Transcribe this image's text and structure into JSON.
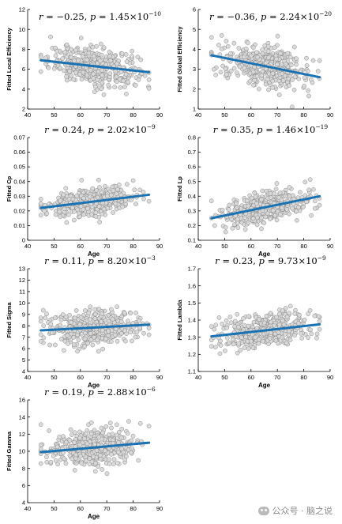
{
  "watermark": "公众号 · 脑之说",
  "colors": {
    "line": "#1a72b3",
    "point_fill": "#d9d9d9",
    "point_stroke": "#7d7d7d",
    "axis": "#000000"
  },
  "chart_data": [
    {
      "type": "scatter",
      "annotation_r": "−0.25",
      "annotation_p_mant": "1.45",
      "annotation_p_exp": "−10",
      "ylabel": "Fitted Local Efficiency",
      "xlabel": "",
      "xlim": [
        40,
        90
      ],
      "ylim": [
        2,
        12
      ],
      "xticks": [
        40,
        50,
        60,
        70,
        80,
        90
      ],
      "yticks": [
        2,
        4,
        6,
        8,
        10,
        12
      ],
      "ytick_labels": [
        "2",
        "4",
        "6",
        "8",
        "10",
        "12"
      ],
      "fit": {
        "x": [
          45,
          86
        ],
        "y": [
          6.9,
          5.7
        ]
      },
      "center": 6.3,
      "spread": 0.9
    },
    {
      "type": "scatter",
      "annotation_r": "−0.36",
      "annotation_p_mant": "2.24",
      "annotation_p_exp": "−20",
      "ylabel": "Fitted Global Efficiency",
      "xlabel": "",
      "xlim": [
        40,
        90
      ],
      "ylim": [
        1,
        6
      ],
      "xticks": [
        40,
        50,
        60,
        70,
        80,
        90
      ],
      "yticks": [
        1,
        2,
        3,
        4,
        5,
        6
      ],
      "ytick_labels": [
        "1",
        "2",
        "3",
        "4",
        "5",
        "6"
      ],
      "fit": {
        "x": [
          45,
          86
        ],
        "y": [
          3.7,
          2.6
        ]
      },
      "center": 3.2,
      "spread": 0.5
    },
    {
      "type": "scatter",
      "annotation_r": "0.24",
      "annotation_p_mant": "2.02",
      "annotation_p_exp": "−9",
      "ylabel": "Fitted Cp",
      "xlabel": "Age",
      "xlim": [
        40,
        90
      ],
      "ylim": [
        0,
        0.07
      ],
      "xticks": [
        40,
        50,
        60,
        70,
        80,
        90
      ],
      "yticks": [
        0,
        0.01,
        0.02,
        0.03,
        0.04,
        0.05,
        0.06,
        0.07
      ],
      "ytick_labels": [
        "0",
        "0.01",
        "0.02",
        "0.03",
        "0.04",
        "0.05",
        "0.06",
        "0.07"
      ],
      "fit": {
        "x": [
          45,
          86
        ],
        "y": [
          0.022,
          0.031
        ]
      },
      "center": 0.027,
      "spread": 0.0045
    },
    {
      "type": "scatter",
      "annotation_r": "0.35",
      "annotation_p_mant": "1.46",
      "annotation_p_exp": "−19",
      "ylabel": "Fitted Lp",
      "xlabel": "Age",
      "xlim": [
        40,
        90
      ],
      "ylim": [
        0.1,
        0.8
      ],
      "xticks": [
        40,
        50,
        60,
        70,
        80,
        90
      ],
      "yticks": [
        0.1,
        0.2,
        0.3,
        0.4,
        0.5,
        0.6,
        0.7,
        0.8
      ],
      "ytick_labels": [
        "0.1",
        "0.2",
        "0.3",
        "0.4",
        "0.5",
        "0.6",
        "0.7",
        "0.8"
      ],
      "fit": {
        "x": [
          45,
          86
        ],
        "y": [
          0.25,
          0.4
        ]
      },
      "center": 0.32,
      "spread": 0.055
    },
    {
      "type": "scatter",
      "annotation_r": "0.11",
      "annotation_p_mant": "8.20",
      "annotation_p_exp": "−3",
      "ylabel": "Fitted Sigma",
      "xlabel": "Age",
      "xlim": [
        40,
        90
      ],
      "ylim": [
        4,
        13
      ],
      "xticks": [
        40,
        50,
        60,
        70,
        80,
        90
      ],
      "yticks": [
        4,
        5,
        6,
        7,
        8,
        9,
        10,
        11,
        12,
        13
      ],
      "ytick_labels": [
        "4",
        "5",
        "6",
        "7",
        "8",
        "9",
        "10",
        "11",
        "12",
        "13"
      ],
      "fit": {
        "x": [
          45,
          86
        ],
        "y": [
          7.6,
          8.1
        ]
      },
      "center": 7.85,
      "spread": 0.75
    },
    {
      "type": "scatter",
      "annotation_r": "0.23",
      "annotation_p_mant": "9.73",
      "annotation_p_exp": "−9",
      "ylabel": "Fitted Lambda",
      "xlabel": "Age",
      "xlim": [
        40,
        90
      ],
      "ylim": [
        1.1,
        1.7
      ],
      "xticks": [
        40,
        50,
        60,
        70,
        80,
        90
      ],
      "yticks": [
        1.1,
        1.2,
        1.3,
        1.4,
        1.5,
        1.6,
        1.7
      ],
      "ytick_labels": [
        "1.1",
        "1.2",
        "1.3",
        "1.4",
        "1.5",
        "1.6",
        "1.7"
      ],
      "fit": {
        "x": [
          45,
          86
        ],
        "y": [
          1.305,
          1.375
        ]
      },
      "center": 1.345,
      "spread": 0.05
    },
    {
      "type": "scatter",
      "annotation_r": "0.19",
      "annotation_p_mant": "2.88",
      "annotation_p_exp": "−6",
      "ylabel": "Fitted Gamma",
      "xlabel": "Age",
      "xlim": [
        40,
        90
      ],
      "ylim": [
        4,
        16
      ],
      "xticks": [
        40,
        50,
        60,
        70,
        80,
        90
      ],
      "yticks": [
        4,
        6,
        8,
        10,
        12,
        14,
        16
      ],
      "ytick_labels": [
        "4",
        "6",
        "8",
        "10",
        "12",
        "14",
        "16"
      ],
      "fit": {
        "x": [
          45,
          86
        ],
        "y": [
          9.9,
          11.0
        ]
      },
      "center": 10.45,
      "spread": 1.05
    }
  ]
}
